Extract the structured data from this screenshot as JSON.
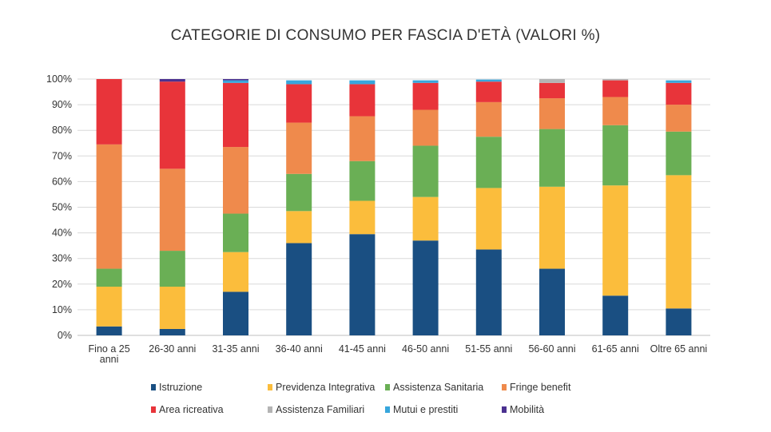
{
  "title": "CATEGORIE DI CONSUMO PER FASCIA D'ETÀ (VALORI %)",
  "chart_data": {
    "type": "bar",
    "stacked": true,
    "title": "CATEGORIE DI CONSUMO PER FASCIA D'ETÀ (VALORI %)",
    "ylim": [
      0,
      100
    ],
    "yticks": [
      "0%",
      "10%",
      "20%",
      "30%",
      "40%",
      "50%",
      "60%",
      "70%",
      "80%",
      "90%",
      "100%"
    ],
    "grid": true,
    "legend_position": "bottom",
    "categories": [
      [
        "Fino a 25",
        "anni"
      ],
      [
        "26-30 anni"
      ],
      [
        "31-35 anni"
      ],
      [
        "36-40 anni"
      ],
      [
        "41-45 anni"
      ],
      [
        "46-50 anni"
      ],
      [
        "51-55 anni"
      ],
      [
        "56-60 anni"
      ],
      [
        "61-65 anni"
      ],
      [
        "Oltre 65 anni"
      ]
    ],
    "series": [
      {
        "name": "Istruzione",
        "color": "#1a4f82",
        "values": [
          3.5,
          2.5,
          17,
          36,
          39.5,
          37,
          33.5,
          26,
          15.5,
          10.5
        ]
      },
      {
        "name": "Previdenza Integrativa",
        "color": "#fbbd3c",
        "values": [
          15.5,
          16.5,
          15.5,
          12.5,
          13,
          17,
          24,
          32,
          43,
          52
        ]
      },
      {
        "name": "Assistenza Sanitaria",
        "color": "#6aaf55",
        "values": [
          7,
          14,
          15,
          14.5,
          15.5,
          20,
          20,
          22.5,
          23.5,
          17
        ]
      },
      {
        "name": "Fringe benefit",
        "color": "#ef8a4c",
        "values": [
          48.5,
          32,
          26,
          20,
          17.5,
          14,
          13.5,
          12,
          11,
          10.5
        ]
      },
      {
        "name": "Area ricreativa",
        "color": "#e8343a",
        "values": [
          25.5,
          34,
          25,
          15,
          12.5,
          10.5,
          8,
          6,
          6.5,
          8.5
        ]
      },
      {
        "name": "Assistenza Familiari",
        "color": "#b4b4b4",
        "values": [
          0,
          0,
          0,
          0,
          0,
          0,
          0,
          1.5,
          0.5,
          0
        ]
      },
      {
        "name": "Mutui e prestiti",
        "color": "#37a6dc",
        "values": [
          0,
          0,
          1,
          1.5,
          1.5,
          1,
          0.8,
          0,
          0,
          1
        ]
      },
      {
        "name": "Mobilità",
        "color": "#4b3190",
        "values": [
          0,
          1,
          0.5,
          0,
          0,
          0,
          0,
          0,
          0,
          0
        ]
      }
    ]
  }
}
